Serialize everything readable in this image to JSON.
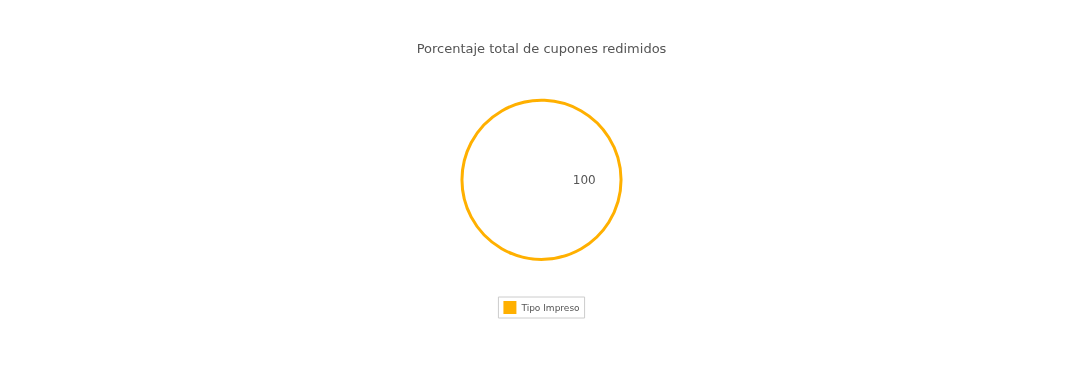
{
  "chart_data": {
    "type": "pie",
    "title": "Porcentaje total de cupones redimidos",
    "categories": [
      "Tipo Impreso"
    ],
    "values": [
      100
    ],
    "colors": [
      "#ffb000"
    ],
    "data_labels": true,
    "legend": "bottom"
  }
}
